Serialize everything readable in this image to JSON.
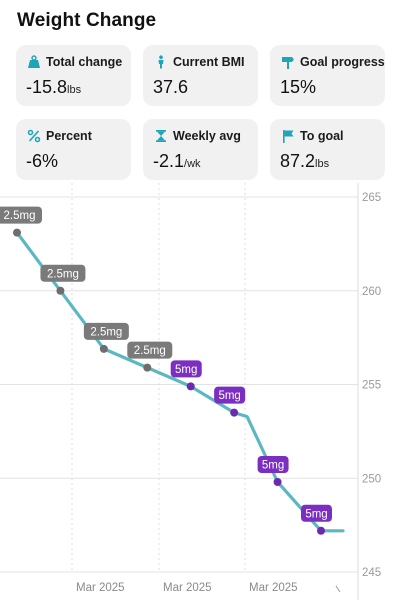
{
  "header": {
    "title": "Weight Change"
  },
  "stats": [
    {
      "id": "total-change",
      "icon": "scale-icon",
      "label": "Total change",
      "value": "-15.8",
      "unit": "lbs"
    },
    {
      "id": "current-bmi",
      "icon": "person-icon",
      "label": "Current BMI",
      "value": "37.6",
      "unit": ""
    },
    {
      "id": "goal-progress",
      "icon": "signpost-icon",
      "label": "Goal progress",
      "value": "15%",
      "unit": ""
    },
    {
      "id": "percent",
      "icon": "percent-icon",
      "label": "Percent",
      "value": "-6%",
      "unit": ""
    },
    {
      "id": "weekly-avg",
      "icon": "hourglass-icon",
      "label": "Weekly avg",
      "value": "-2.1",
      "unit": "/wk"
    },
    {
      "id": "to-goal",
      "icon": "flag-icon",
      "label": "To goal",
      "value": "87.2",
      "unit": "lbs"
    }
  ],
  "colors": {
    "accent": "#1fa5b5",
    "line": "#5bb8c1",
    "dose_low": "#7a7a7a",
    "dose_high": "#7b2fc0"
  },
  "chart_data": {
    "type": "line",
    "title": "",
    "xlabel": "",
    "ylabel": "",
    "ylim": [
      245,
      265
    ],
    "yticks": [
      245,
      250,
      255,
      260,
      265
    ],
    "y_axis_side": "right",
    "x_tick_labels": [
      "Mar 2025",
      "Mar 2025",
      "Mar 2025"
    ],
    "grid": true,
    "series": [
      {
        "name": "",
        "points": [
          {
            "y": 263.1,
            "dose": "2.5mg"
          },
          {
            "y": 260.0,
            "dose": "2.5mg"
          },
          {
            "y": 256.9,
            "dose": "2.5mg"
          },
          {
            "y": 255.9,
            "dose": "2.5mg"
          },
          {
            "y": 254.9,
            "dose": "5mg"
          },
          {
            "y": 253.5,
            "dose": "5mg"
          },
          {
            "y": 249.8,
            "dose": "5mg"
          },
          {
            "y": 247.2,
            "dose": "5mg"
          }
        ]
      }
    ]
  }
}
